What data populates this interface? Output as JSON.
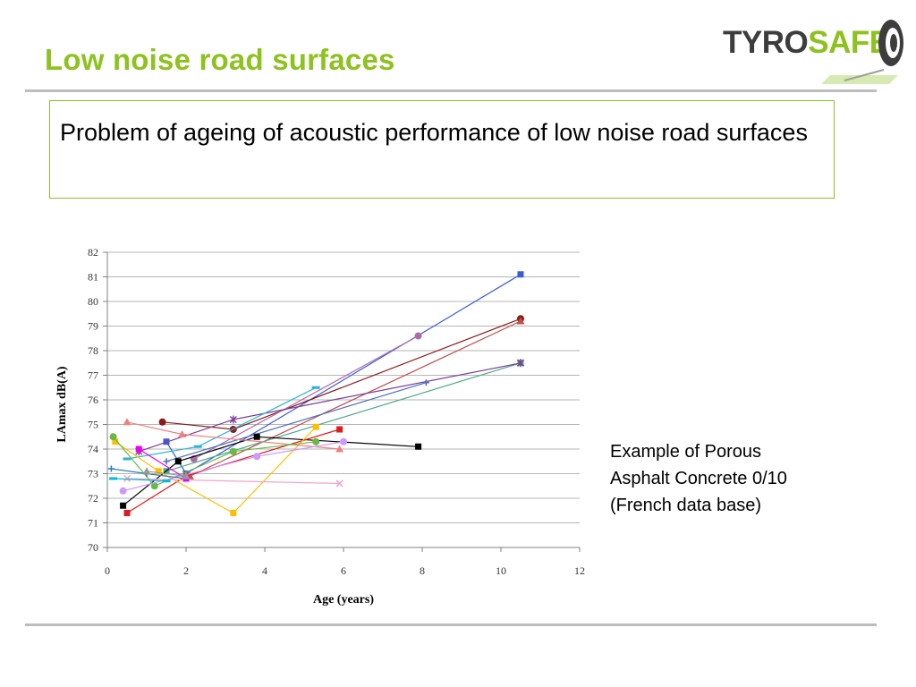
{
  "slide": {
    "title": "Low noise road surfaces",
    "bullet": "Problem of ageing of acoustic performance of low noise road surfaces",
    "caption_lines": [
      "Example of Porous",
      "Asphalt Concrete 0/10",
      "(French data base)"
    ],
    "logo": {
      "part1": "TYRO",
      "part2": "SAFE"
    }
  },
  "colors": {
    "title": "#8dc21f",
    "box_border": "#8dc21f",
    "rule": "#bdbdbd",
    "logo_dark": "#3d3d3d",
    "logo_green": "#8dc21f"
  },
  "chart_data": {
    "type": "line",
    "xlabel": "Age (years)",
    "ylabel": "LAmax dB(A)",
    "xlim": [
      0,
      12
    ],
    "ylim": [
      70,
      82
    ],
    "xticks": [
      0,
      2,
      4,
      6,
      8,
      10,
      12
    ],
    "yticks": [
      70,
      71,
      72,
      73,
      74,
      75,
      76,
      77,
      78,
      79,
      80,
      81,
      82
    ],
    "grid": "horizontal",
    "legend": "none",
    "series": [
      {
        "color": "#3b5bd9",
        "marker": "square",
        "x": [
          1.5,
          2.0,
          10.5
        ],
        "y": [
          74.3,
          73.0,
          81.1
        ]
      },
      {
        "color": "#8b1a1a",
        "marker": "circle",
        "x": [
          1.4,
          3.2,
          10.5
        ],
        "y": [
          75.1,
          74.8,
          79.3
        ]
      },
      {
        "color": "#b06aa8",
        "marker": "circle",
        "x": [
          2.2,
          7.9
        ],
        "y": [
          73.6,
          78.6
        ]
      },
      {
        "color": "#c0504d",
        "marker": "triangle",
        "x": [
          2.1,
          10.5
        ],
        "y": [
          72.9,
          79.2
        ]
      },
      {
        "color": "#333399",
        "marker": "x",
        "x": [
          10.5
        ],
        "y": [
          77.5
        ]
      },
      {
        "color": "#4caa88",
        "marker": "square",
        "x": [
          1.5,
          10.5
        ],
        "y": [
          73.1,
          77.5
        ]
      },
      {
        "color": "#7b3f9b",
        "marker": "star",
        "x": [
          0.8,
          3.2,
          10.5
        ],
        "y": [
          73.9,
          75.2,
          77.5
        ]
      },
      {
        "color": "#4a6fc7",
        "marker": "plus",
        "x": [
          1.5,
          8.1
        ],
        "y": [
          73.5,
          76.7
        ]
      },
      {
        "color": "#29b6d6",
        "marker": "dash",
        "x": [
          0.5,
          2.3,
          5.3
        ],
        "y": [
          73.6,
          74.1,
          76.5
        ]
      },
      {
        "color": "#000000",
        "marker": "square",
        "x": [
          0.4,
          1.8,
          3.8,
          7.9
        ],
        "y": [
          71.7,
          73.5,
          74.5,
          74.1
        ]
      },
      {
        "color": "#e31a1c",
        "marker": "square",
        "x": [
          0.5,
          2.0,
          5.9
        ],
        "y": [
          71.4,
          72.9,
          74.8
        ]
      },
      {
        "color": "#ffbf00",
        "marker": "square",
        "x": [
          0.2,
          1.3,
          3.2,
          5.3
        ],
        "y": [
          74.3,
          73.1,
          71.4,
          74.9
        ]
      },
      {
        "color": "#f08080",
        "marker": "triangle",
        "x": [
          0.5,
          1.9,
          5.9
        ],
        "y": [
          75.1,
          74.6,
          74.0
        ]
      },
      {
        "color": "#f4a6c8",
        "marker": "x",
        "x": [
          0.5,
          5.9
        ],
        "y": [
          72.8,
          72.6
        ]
      },
      {
        "color": "#66bb44",
        "marker": "circle",
        "x": [
          0.15,
          1.2,
          3.2,
          5.3
        ],
        "y": [
          74.5,
          72.5,
          73.9,
          74.3
        ]
      },
      {
        "color": "#cc99ff",
        "marker": "circle",
        "x": [
          0.4,
          3.8,
          6.0
        ],
        "y": [
          72.3,
          73.7,
          74.3
        ]
      },
      {
        "color": "#2d7fb8",
        "marker": "plus",
        "x": [
          0.1,
          1.0,
          2.0
        ],
        "y": [
          73.2,
          73.0,
          72.8
        ]
      },
      {
        "color": "#00bcd4",
        "marker": "dash",
        "x": [
          0.15,
          1.5
        ],
        "y": [
          72.8,
          72.7
        ]
      },
      {
        "color": "#ee00ee",
        "marker": "square",
        "x": [
          0.8,
          2.0
        ],
        "y": [
          74.0,
          72.8
        ]
      },
      {
        "color": "#999999",
        "marker": "triangle",
        "x": [
          1.0,
          2.0
        ],
        "y": [
          73.1,
          72.9
        ]
      }
    ]
  }
}
